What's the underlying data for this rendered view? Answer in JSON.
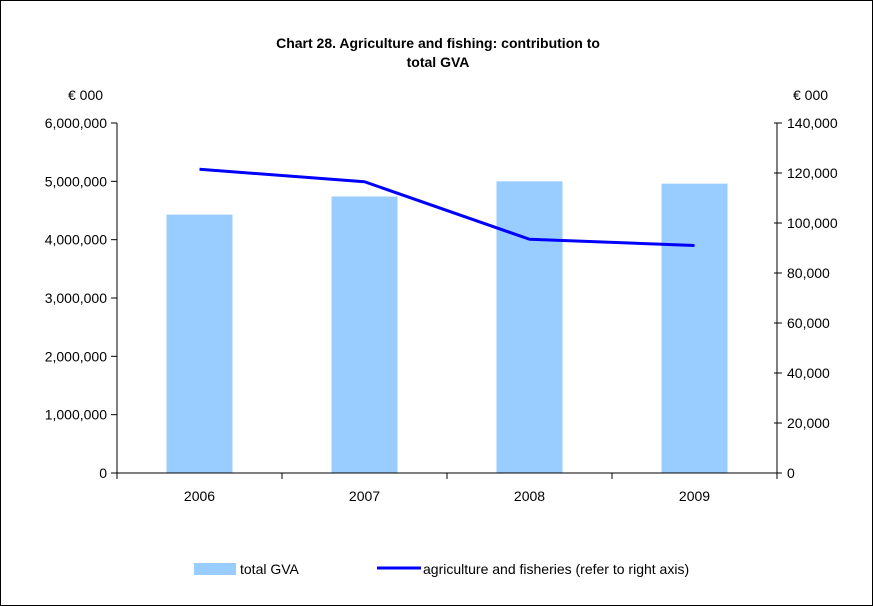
{
  "chart_data": {
    "type": "bar",
    "title_lines": [
      "Chart 28.  Agriculture and fishing: contribution to",
      "total GVA"
    ],
    "left_axis_unit": "€ 000",
    "right_axis_unit": "€ 000",
    "categories": [
      "2006",
      "2007",
      "2008",
      "2009"
    ],
    "y_left": {
      "range": [
        0,
        6000000
      ],
      "ticks": [
        0,
        1000000,
        2000000,
        3000000,
        4000000,
        5000000,
        6000000
      ],
      "tick_labels": [
        "0",
        "1,000,000",
        "2,000,000",
        "3,000,000",
        "4,000,000",
        "5,000,000",
        "6,000,000"
      ]
    },
    "y_right": {
      "range": [
        0,
        140000
      ],
      "ticks": [
        0,
        20000,
        40000,
        60000,
        80000,
        100000,
        120000,
        140000
      ],
      "tick_labels": [
        "0",
        "20,000",
        "40,000",
        "60,000",
        "80,000",
        "100,000",
        "120,000",
        "140,000"
      ]
    },
    "series": [
      {
        "name": "total GVA",
        "type": "bar",
        "axis": "left",
        "color": "#99ccff",
        "values": [
          4430000,
          4740000,
          5000000,
          4960000
        ]
      },
      {
        "name": "agriculture and fisheries (refer to right axis)",
        "type": "line",
        "axis": "right",
        "color": "#0000ff",
        "values": [
          121500,
          116500,
          93500,
          91000
        ]
      }
    ],
    "grid": false,
    "legend_position": "bottom"
  }
}
